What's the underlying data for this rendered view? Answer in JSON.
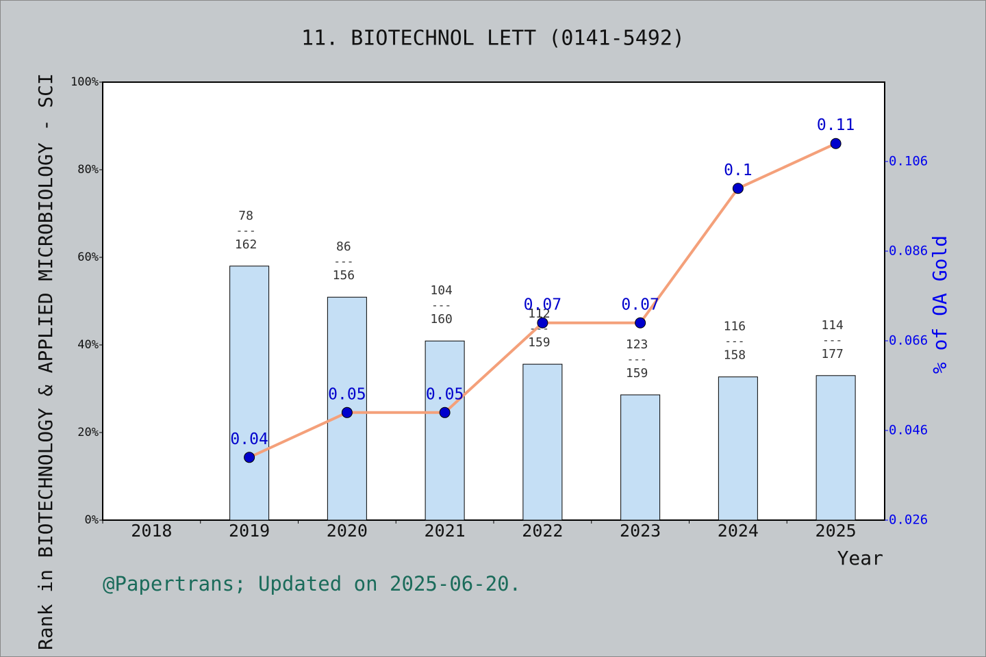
{
  "chart_data": {
    "type": "bar_line",
    "title": "11. BIOTECHNOL LETT (0141-5492)",
    "y_label": "Rank in BIOTECHNOLOGY & APPLIED MICROBIOLOGY - SCI",
    "y2_label": "% of OA Gold",
    "x_label": "Year",
    "footer": "@Papertrans; Updated on 2025-06-20.",
    "categories": [
      "2018",
      "2019",
      "2020",
      "2021",
      "2022",
      "2023",
      "2024",
      "2025"
    ],
    "series": [
      {
        "type": "bar",
        "color": "#c5dff5",
        "values": [
          null,
          58.0,
          50.9,
          40.9,
          35.6,
          28.6,
          32.7,
          33.0
        ]
      },
      {
        "type": "line",
        "axis": "y2",
        "color": "#f4a07a",
        "marker_color": "#0000cc",
        "values": [
          null,
          0.04,
          0.05,
          0.05,
          0.07,
          0.07,
          0.1,
          0.11
        ]
      }
    ],
    "rank_labels": [
      null,
      {
        "rank": 78,
        "total": 162
      },
      {
        "rank": 86,
        "total": 156
      },
      {
        "rank": 104,
        "total": 160
      },
      {
        "rank": 112,
        "total": 159
      },
      {
        "rank": 123,
        "total": 159
      },
      {
        "rank": 116,
        "total": 158
      },
      {
        "rank": 114,
        "total": 177
      }
    ],
    "rank_separator": "---",
    "ylim": [
      0,
      100
    ],
    "yticks": [
      {
        "value": 0,
        "label": "0%"
      },
      {
        "value": 20,
        "label": "20%"
      },
      {
        "value": 40,
        "label": "40%"
      },
      {
        "value": 60,
        "label": "60%"
      },
      {
        "value": 80,
        "label": "80%"
      },
      {
        "value": 100,
        "label": "100%"
      }
    ],
    "y2lim": [
      0.026,
      0.1237
    ],
    "y2ticks": [
      0.026,
      0.046,
      0.066,
      0.086,
      0.106
    ]
  }
}
